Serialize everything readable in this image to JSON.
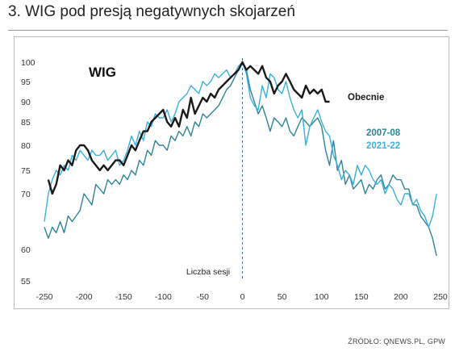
{
  "title": "3. WIG pod presją negatywnych skojarzeń",
  "source": "ŹRÓDŁO: QNEWS.PL, GPW",
  "chart_data": {
    "type": "line",
    "title": "WIG",
    "xlabel": "Liczba sesji",
    "ylabel": "",
    "xlim": [
      -250,
      250
    ],
    "ylim": [
      55,
      100
    ],
    "yaxis_scale": "nonlinear (tick spacing compressed below 70)",
    "x_ticks": [
      -250,
      -200,
      -150,
      -100,
      -50,
      0,
      50,
      100,
      150,
      200,
      250
    ],
    "y_ticks": [
      55,
      60,
      70,
      75,
      80,
      85,
      90,
      95,
      100
    ],
    "reference_line": {
      "x": 0,
      "style": "dashed",
      "color": "#3a6fb0"
    },
    "grid": false,
    "legend": "inline labels at right",
    "series": [
      {
        "name": "Obecnie",
        "color": "#1a1a1a",
        "x": [
          -245,
          -240,
          -235,
          -230,
          -225,
          -220,
          -215,
          -210,
          -205,
          -200,
          -195,
          -190,
          -185,
          -180,
          -175,
          -170,
          -165,
          -160,
          -155,
          -150,
          -145,
          -140,
          -135,
          -130,
          -125,
          -120,
          -115,
          -110,
          -105,
          -100,
          -95,
          -90,
          -85,
          -80,
          -75,
          -70,
          -65,
          -60,
          -55,
          -50,
          -45,
          -40,
          -35,
          -30,
          -25,
          -20,
          -15,
          -10,
          -5,
          0,
          5,
          10,
          15,
          20,
          25,
          30,
          35,
          40,
          45,
          50,
          55,
          60,
          65,
          70,
          75,
          80,
          85,
          90,
          95,
          100,
          105,
          110
        ],
        "y": [
          73,
          70,
          72,
          76,
          75,
          77,
          76,
          79,
          80,
          80,
          79,
          77,
          76,
          75,
          76,
          75,
          76,
          77,
          77,
          76,
          78,
          80,
          79,
          81,
          83,
          83,
          85,
          86,
          87,
          88,
          85,
          84,
          86,
          84,
          88,
          86,
          91,
          87,
          89,
          91,
          90,
          92,
          91,
          93,
          94,
          95,
          96,
          97,
          98,
          100,
          98,
          99,
          98,
          97,
          99,
          96,
          95,
          92,
          94,
          95,
          97,
          95,
          93,
          92,
          91,
          94,
          92,
          93,
          92,
          93,
          90,
          90
        ]
      },
      {
        "name": "2007-08",
        "color": "#2e8497",
        "x": [
          -250,
          -245,
          -240,
          -235,
          -230,
          -225,
          -220,
          -215,
          -210,
          -205,
          -200,
          -195,
          -190,
          -185,
          -180,
          -175,
          -170,
          -165,
          -160,
          -155,
          -150,
          -145,
          -140,
          -135,
          -130,
          -125,
          -120,
          -115,
          -110,
          -105,
          -100,
          -95,
          -90,
          -85,
          -80,
          -75,
          -70,
          -65,
          -60,
          -55,
          -50,
          -45,
          -40,
          -35,
          -30,
          -25,
          -20,
          -15,
          -10,
          -5,
          0,
          5,
          10,
          15,
          20,
          25,
          30,
          35,
          40,
          45,
          50,
          55,
          60,
          65,
          70,
          75,
          80,
          85,
          90,
          95,
          100,
          105,
          110,
          115,
          120,
          125,
          130,
          135,
          140,
          145,
          150,
          155,
          160,
          165,
          170,
          175,
          180,
          185,
          190,
          195,
          200,
          205,
          210,
          215,
          220,
          225,
          230,
          235,
          240,
          245
        ],
        "y": [
          64,
          62,
          64,
          63,
          65,
          63,
          66,
          65,
          66,
          67,
          70,
          69,
          68,
          72,
          71,
          70,
          73,
          72,
          73,
          72,
          74,
          73,
          75,
          74,
          77,
          76,
          79,
          78,
          81,
          80,
          80,
          79,
          82,
          81,
          83,
          82,
          84,
          82,
          85,
          84,
          87,
          86,
          87,
          88,
          89,
          91,
          93,
          94,
          96,
          98,
          100,
          98,
          93,
          90,
          87,
          89,
          86,
          83,
          86,
          85,
          84,
          86,
          83,
          82,
          84,
          86,
          85,
          84,
          85,
          86,
          84,
          79,
          76,
          81,
          75,
          77,
          72,
          74,
          71,
          72,
          73,
          70,
          72,
          71,
          73,
          74,
          71,
          72,
          74,
          73,
          73,
          71,
          71,
          68,
          68,
          66,
          65,
          64,
          62,
          59
        ]
      },
      {
        "name": "2021-22",
        "color": "#3bb0da",
        "x": [
          -250,
          -245,
          -240,
          -235,
          -230,
          -225,
          -220,
          -215,
          -210,
          -205,
          -200,
          -195,
          -190,
          -185,
          -180,
          -175,
          -170,
          -165,
          -160,
          -155,
          -150,
          -145,
          -140,
          -135,
          -130,
          -125,
          -120,
          -115,
          -110,
          -105,
          -100,
          -95,
          -90,
          -85,
          -80,
          -75,
          -70,
          -65,
          -60,
          -55,
          -50,
          -45,
          -40,
          -35,
          -30,
          -25,
          -20,
          -15,
          -10,
          -5,
          0,
          5,
          10,
          15,
          20,
          25,
          30,
          35,
          40,
          45,
          50,
          55,
          60,
          65,
          70,
          75,
          80,
          85,
          90,
          95,
          100,
          105,
          110,
          115,
          120,
          125,
          130,
          135,
          140,
          145,
          150,
          155,
          160,
          165,
          170,
          175,
          180,
          185,
          190,
          195,
          200,
          205,
          210,
          215,
          220,
          225,
          230,
          235,
          240,
          245
        ],
        "y": [
          65,
          70,
          73,
          75,
          74,
          76,
          75,
          78,
          77,
          79,
          78,
          77,
          79,
          78,
          78,
          79,
          77,
          78,
          79,
          76,
          77,
          79,
          82,
          80,
          83,
          81,
          85,
          84,
          87,
          86,
          86,
          88,
          85,
          87,
          90,
          91,
          92,
          94,
          93,
          92,
          95,
          94,
          95,
          97,
          96,
          97,
          98,
          96,
          97,
          99,
          100,
          97,
          91,
          89,
          88,
          94,
          91,
          97,
          96,
          93,
          92,
          95,
          91,
          88,
          86,
          88,
          80,
          84,
          86,
          88,
          85,
          83,
          82,
          78,
          76,
          73,
          75,
          74,
          72,
          76,
          74,
          76,
          75,
          73,
          72,
          73,
          70,
          72,
          71,
          69,
          68,
          70,
          70,
          68,
          69,
          67,
          66,
          64,
          66,
          70
        ]
      }
    ]
  }
}
